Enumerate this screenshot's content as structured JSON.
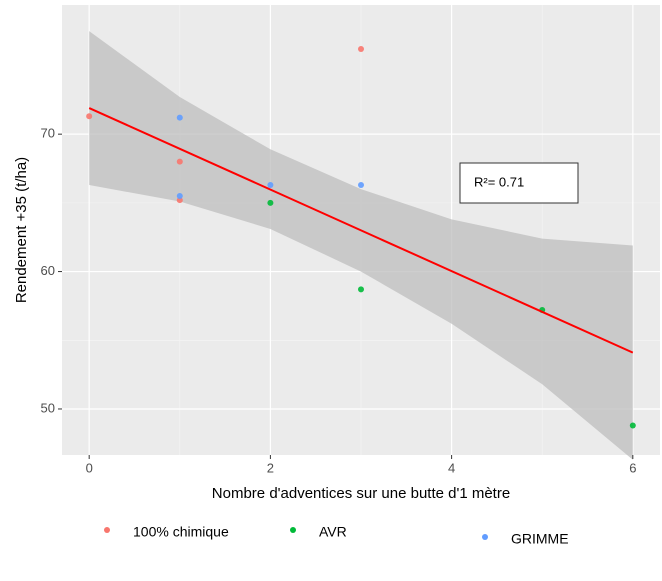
{
  "chart_data": {
    "type": "scatter",
    "x_label": "Nombre d'adventices sur une butte d'1 mètre",
    "y_label": "Rendement +35 (t/ha)",
    "annotation": "R²= 0.71",
    "xlim": [
      -0.3,
      6.3
    ],
    "ylim": [
      46.65,
      79.4
    ],
    "xticks": [
      0,
      2,
      4,
      6
    ],
    "yticks": [
      50,
      60,
      70
    ],
    "grid": true,
    "legend_position": "bottom",
    "series": [
      {
        "name": "100% chimique",
        "color": "#F8766D",
        "x": [
          0,
          1,
          1,
          3
        ],
        "values": [
          71.3,
          68,
          65.2,
          76.2
        ]
      },
      {
        "name": "AVR",
        "color": "#00BA38",
        "x": [
          2,
          3,
          5,
          6
        ],
        "values": [
          65,
          58.7,
          57.2,
          48.8
        ]
      },
      {
        "name": "GRIMME",
        "color": "#619CFF",
        "x": [
          1,
          1,
          2,
          3
        ],
        "values": [
          71.2,
          65.5,
          66.3,
          66.3
        ]
      }
    ],
    "trend": {
      "color": "#FF0000",
      "x": [
        0,
        6
      ],
      "values": [
        71.9,
        54.1
      ]
    },
    "band": {
      "color": "#BDBDBD",
      "x": [
        0,
        1,
        2,
        3,
        4,
        5,
        6
      ],
      "upper": [
        77.5,
        72.7,
        68.9,
        66.0,
        63.8,
        62.4,
        61.9
      ],
      "lower": [
        66.3,
        65.1,
        63.1,
        60.0,
        56.2,
        51.8,
        46.3
      ]
    }
  }
}
